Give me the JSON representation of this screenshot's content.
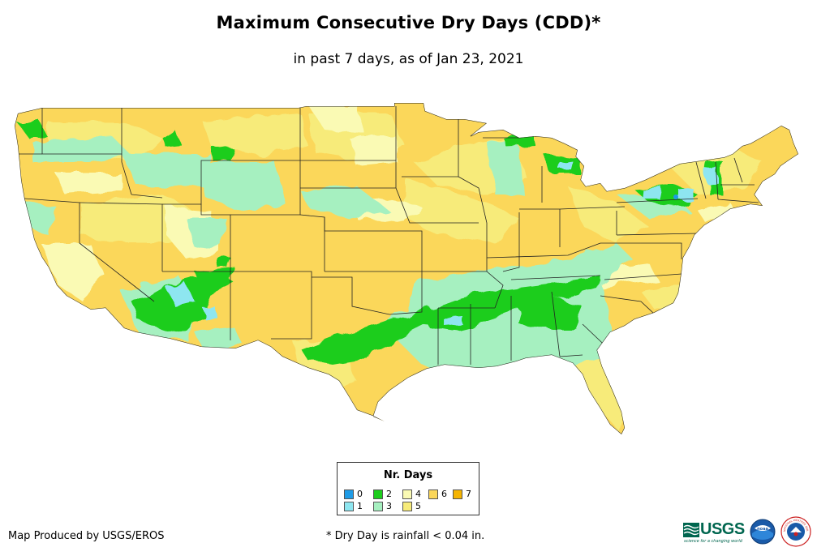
{
  "title": "Maximum Consecutive Dry Days (CDD)*",
  "subtitle": "in past 7 days, as of Jan 23, 2021",
  "legend": {
    "title": "Nr. Days",
    "items": [
      {
        "label": "0",
        "color": "#1e9be6"
      },
      {
        "label": "1",
        "color": "#8ee6f0"
      },
      {
        "label": "2",
        "color": "#1ccd1c"
      },
      {
        "label": "3",
        "color": "#a6f0c0"
      },
      {
        "label": "4",
        "color": "#fafab4"
      },
      {
        "label": "5",
        "color": "#f7eb7a"
      },
      {
        "label": "6",
        "color": "#fbd75a"
      },
      {
        "label": "7",
        "color": "#f5b400"
      }
    ]
  },
  "footer": {
    "producer": "Map Produced by USGS/EROS",
    "footnote": "* Dry Day is rainfall < 0.04 in."
  },
  "logos": {
    "usgs": "USGS",
    "usgs_tagline": "science for a changing world",
    "noaa": "noaa",
    "nws": "NATIONAL WEATHER SERVICE"
  }
}
